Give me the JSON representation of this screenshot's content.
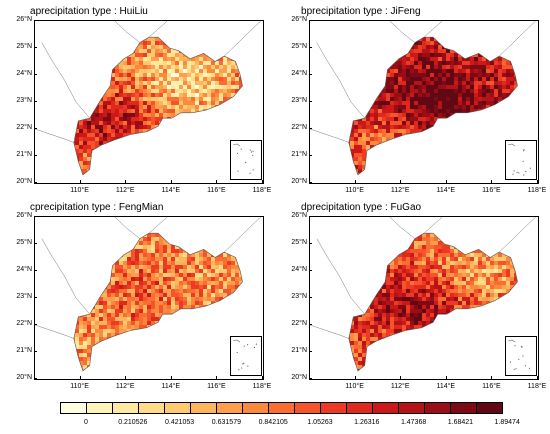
{
  "panels": [
    {
      "letter": "a",
      "title": "precipitation type : HuiLiu"
    },
    {
      "letter": "b",
      "title": "precipitation type : JiFeng"
    },
    {
      "letter": "c",
      "title": "precipitation type : FengMian"
    },
    {
      "letter": "d",
      "title": "precipitation type : FuGao"
    }
  ],
  "y_ticks": [
    "26°N",
    "25°N",
    "24°N",
    "23°N",
    "22°N",
    "21°N",
    "20°N"
  ],
  "x_ticks": [
    "110°E",
    "112°E",
    "114°E",
    "116°E",
    "118°E"
  ],
  "colorbar": {
    "labels": [
      "0",
      "0.210526",
      "0.421053",
      "0.631579",
      "0.842105",
      "1.05263",
      "1.26316",
      "1.47368",
      "1.68421",
      "1.89474"
    ],
    "colors": [
      "#fffde0",
      "#fff3b8",
      "#ffe8a0",
      "#fedc88",
      "#fdc971",
      "#fdb55e",
      "#fd9f4c",
      "#fc8a3d",
      "#fb6e33",
      "#f6552b",
      "#ed3a22",
      "#de2a1d",
      "#cc1818",
      "#b51318",
      "#9a0d17",
      "#7d0a15",
      "#600813"
    ]
  },
  "intensity": {
    "a": 0.45,
    "b": 0.72,
    "c": 0.38,
    "d": 0.55
  }
}
